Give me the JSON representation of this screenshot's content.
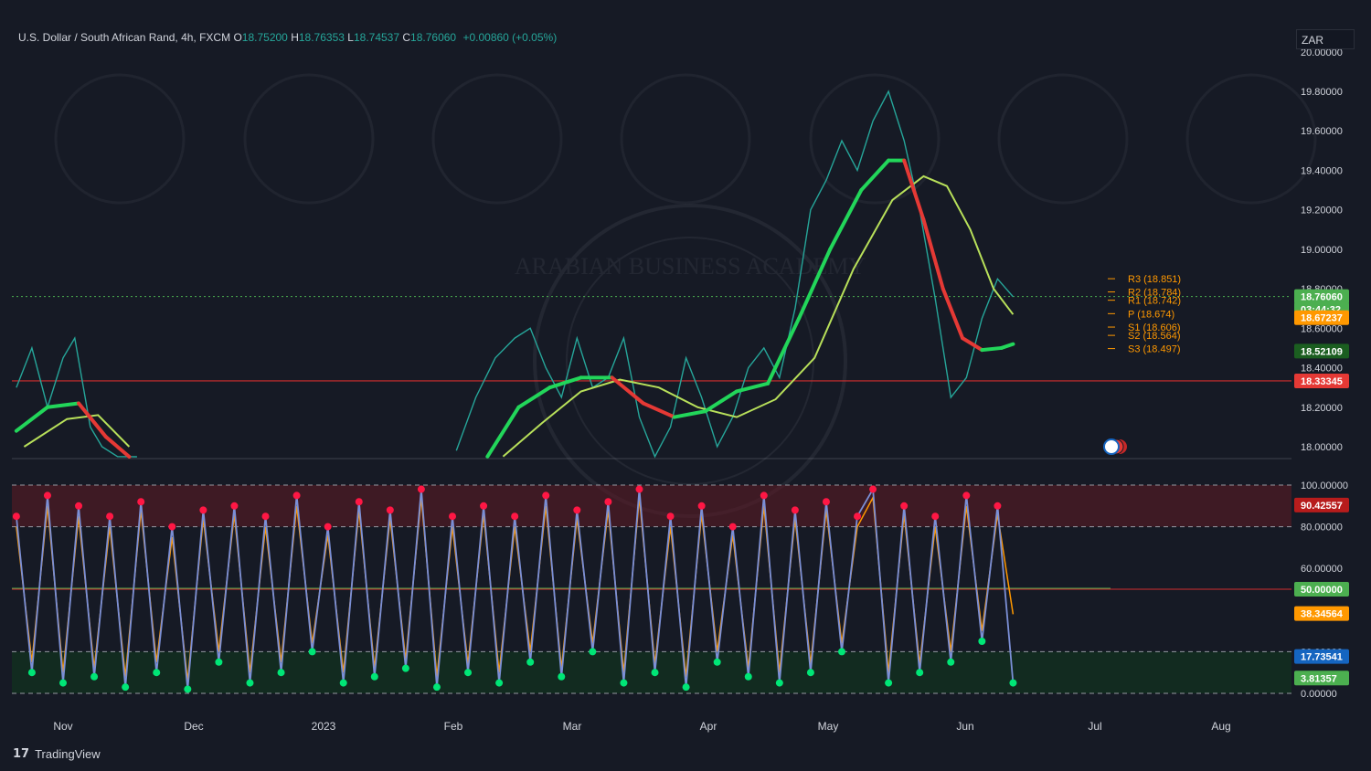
{
  "header": {
    "symbol": "U.S. Dollar / South African Rand, 4h, FXCM",
    "open_label": "O",
    "open": "18.75200",
    "high_label": "H",
    "high": "18.76353",
    "low_label": "L",
    "low": "18.74537",
    "close_label": "C",
    "close": "18.76060",
    "change": "+0.00860 (+0.05%)"
  },
  "currency": "ZAR",
  "footer": {
    "brand": "TradingView"
  },
  "watermark_text": "ARABIAN BUSINESS ACADEMY",
  "colors": {
    "background": "#161a25",
    "candle": "#26a69a",
    "ma_fast_up": "#22d65a",
    "ma_fast_down": "#e53935",
    "ma_slow": "#b8e05a",
    "resistance_line": "#d32f2f",
    "price_line_green": "#4caf50",
    "osc_line": "#7b8fd6",
    "osc_signal": "#ff9800",
    "overbought_zone": "#5a1a24",
    "oversold_zone": "#12301f"
  },
  "chart_data": [
    {
      "type": "line",
      "title": "U.S. Dollar / South African Rand, 4h, FXCM",
      "x_ticks": [
        "Nov",
        "Dec",
        "2023",
        "Feb",
        "Mar",
        "Apr",
        "May",
        "Jun",
        "Jul",
        "Aug"
      ],
      "y_ticks": [
        "18.00000",
        "18.20000",
        "18.40000",
        "18.60000",
        "18.80000",
        "19.00000",
        "19.20000",
        "19.40000",
        "19.60000",
        "19.80000",
        "20.00000"
      ],
      "ylim": [
        17.94,
        20.0
      ],
      "grid": false,
      "series": [
        {
          "x": [
            "Oct 20",
            "Oct 24",
            "Oct 28",
            "Nov 1",
            "Nov 4",
            "Nov 8",
            "Nov 11",
            "Nov 15",
            "Nov 20",
            "Feb 10",
            "Feb 15",
            "Feb 20",
            "Feb 25",
            "Mar 1",
            "Mar 5",
            "Mar 9",
            "Mar 13",
            "Mar 17",
            "Mar 21",
            "Mar 25",
            "Mar 29",
            "Apr 2",
            "Apr 6",
            "Apr 10",
            "Apr 14",
            "Apr 18",
            "Apr 22",
            "Apr 26",
            "Apr 30",
            "May 4",
            "May 8",
            "May 12",
            "May 16",
            "May 20",
            "May 24",
            "May 28",
            "Jun 1",
            "Jun 5",
            "Jun 9",
            "Jun 13",
            "Jun 17",
            "Jun 21",
            "Jun 25",
            "Jun 29",
            "Jul 3"
          ],
          "y": [
            18.3,
            18.5,
            18.2,
            18.45,
            18.55,
            18.1,
            18.0,
            17.95,
            17.9,
            17.98,
            18.25,
            18.45,
            18.55,
            18.6,
            18.4,
            18.25,
            18.55,
            18.3,
            18.35,
            18.55,
            18.15,
            17.95,
            18.1,
            18.45,
            18.25,
            18.0,
            18.15,
            18.4,
            18.5,
            18.35,
            18.7,
            19.2,
            19.35,
            19.55,
            19.4,
            19.65,
            19.8,
            19.55,
            19.2,
            18.75,
            18.25,
            18.35,
            18.65,
            18.85,
            18.76
          ]
        },
        {
          "name": "",
          "x": [
            "Oct 20",
            "Oct 28",
            "Nov 5",
            "Nov 12",
            "Nov 18",
            "Feb 18",
            "Feb 26",
            "Mar 6",
            "Mar 14",
            "Mar 22",
            "Mar 30",
            "Apr 7",
            "Apr 15",
            "Apr 23",
            "May 1",
            "May 9",
            "May 17",
            "May 25",
            "Jun 1",
            "Jun 5",
            "Jun 10",
            "Jun 15",
            "Jun 20",
            "Jun 25",
            "Jun 30",
            "Jul 3"
          ],
          "y": [
            18.08,
            18.2,
            18.22,
            18.05,
            17.85,
            17.95,
            18.2,
            18.3,
            18.35,
            18.35,
            18.22,
            18.15,
            18.18,
            18.28,
            18.32,
            18.65,
            19.0,
            19.3,
            19.45,
            19.45,
            19.15,
            18.8,
            18.55,
            18.49,
            18.5,
            18.52
          ]
        },
        {
          "name": "",
          "x": [
            "Oct 22",
            "Nov 2",
            "Nov 10",
            "Nov 18",
            "Feb 22",
            "Mar 4",
            "Mar 14",
            "Mar 24",
            "Apr 3",
            "Apr 13",
            "Apr 23",
            "May 3",
            "May 13",
            "May 23",
            "Jun 2",
            "Jun 10",
            "Jun 16",
            "Jun 22",
            "Jun 28",
            "Jul 3"
          ],
          "y": [
            18.0,
            18.14,
            18.16,
            18.0,
            17.95,
            18.12,
            18.28,
            18.34,
            18.3,
            18.2,
            18.15,
            18.24,
            18.45,
            18.9,
            19.25,
            19.37,
            19.32,
            19.1,
            18.8,
            18.67
          ]
        }
      ],
      "annotations": [
        "R3 (18.851)",
        "R2 (18.784)",
        "R1 (18.742)",
        "P (18.674)",
        "S1 (18.606)",
        "S2 (18.564)",
        "S3 (18.497)"
      ],
      "price_labels": [
        "18.76060",
        "03:44:32",
        "18.67237",
        "18.52109",
        "18.33345"
      ]
    },
    {
      "type": "line",
      "x_ticks": [
        "Nov",
        "Dec",
        "2023",
        "Feb",
        "Mar",
        "Apr",
        "May",
        "Jun",
        "Jul",
        "Aug"
      ],
      "y_ticks": [
        "0.00000",
        "20.00000",
        "40.00000",
        "60.00000",
        "80.00000",
        "100.00000"
      ],
      "ylim": [
        0,
        100
      ],
      "levels": [
        100,
        80,
        50,
        20,
        0
      ],
      "series": [
        {
          "name": "",
          "x": [
            "Oct 20",
            "Oct 24",
            "Oct 28",
            "Nov 1",
            "Nov 5",
            "Nov 9",
            "Nov 13",
            "Nov 17",
            "Nov 21",
            "Nov 25",
            "Nov 29",
            "Dec 3",
            "Dec 7",
            "Dec 11",
            "Dec 15",
            "Dec 19",
            "Dec 23",
            "Dec 27",
            "Dec 31",
            "Jan 4",
            "Jan 8",
            "Jan 12",
            "Jan 16",
            "Jan 20",
            "Jan 24",
            "Jan 28",
            "Feb 1",
            "Feb 5",
            "Feb 9",
            "Feb 13",
            "Feb 17",
            "Feb 21",
            "Feb 25",
            "Mar 1",
            "Mar 5",
            "Mar 9",
            "Mar 13",
            "Mar 17",
            "Mar 21",
            "Mar 25",
            "Mar 29",
            "Apr 2",
            "Apr 6",
            "Apr 10",
            "Apr 14",
            "Apr 18",
            "Apr 22",
            "Apr 26",
            "Apr 30",
            "May 4",
            "May 8",
            "May 12",
            "May 16",
            "May 20",
            "May 24",
            "May 28",
            "Jun 1",
            "Jun 5",
            "Jun 9",
            "Jun 13",
            "Jun 17",
            "Jun 21",
            "Jun 25",
            "Jun 29",
            "Jul 3"
          ],
          "y": [
            85,
            10,
            95,
            5,
            90,
            8,
            85,
            3,
            92,
            10,
            80,
            2,
            88,
            15,
            90,
            5,
            85,
            10,
            95,
            20,
            80,
            5,
            92,
            8,
            88,
            12,
            98,
            3,
            85,
            10,
            90,
            5,
            85,
            15,
            95,
            8,
            88,
            20,
            92,
            5,
            98,
            10,
            85,
            3,
            90,
            15,
            80,
            8,
            95,
            5,
            88,
            10,
            92,
            20,
            85,
            98,
            5,
            90,
            10,
            85,
            15,
            95,
            25,
            90,
            5
          ]
        },
        {
          "name": "",
          "x": [
            "Oct 20",
            "Oct 24",
            "Oct 28",
            "Nov 1",
            "Nov 5",
            "Nov 9",
            "Nov 13",
            "Nov 17",
            "Nov 21",
            "Nov 25",
            "Nov 29",
            "Dec 3",
            "Dec 7",
            "Dec 11",
            "Dec 15",
            "Dec 19",
            "Dec 23",
            "Dec 27",
            "Dec 31",
            "Jan 4",
            "Jan 8",
            "Jan 12",
            "Jan 16",
            "Jan 20",
            "Jan 24",
            "Jan 28",
            "Feb 1",
            "Feb 5",
            "Feb 9",
            "Feb 13",
            "Feb 17",
            "Feb 21",
            "Feb 25",
            "Mar 1",
            "Mar 5",
            "Mar 9",
            "Mar 13",
            "Mar 17",
            "Mar 21",
            "Mar 25",
            "Mar 29",
            "Apr 2",
            "Apr 6",
            "Apr 10",
            "Apr 14",
            "Apr 18",
            "Apr 22",
            "Apr 26",
            "Apr 30",
            "May 4",
            "May 8",
            "May 12",
            "May 16",
            "May 20",
            "May 24",
            "May 28",
            "Jun 1",
            "Jun 5",
            "Jun 9",
            "Jun 13",
            "Jun 17",
            "Jun 21",
            "Jun 25",
            "Jun 29",
            "Jul 3"
          ],
          "y": [
            80,
            15,
            90,
            10,
            85,
            12,
            80,
            8,
            88,
            15,
            75,
            6,
            84,
            20,
            86,
            10,
            80,
            15,
            90,
            24,
            76,
            10,
            88,
            12,
            84,
            16,
            94,
            8,
            80,
            14,
            86,
            10,
            80,
            20,
            90,
            12,
            84,
            24,
            88,
            10,
            94,
            14,
            80,
            8,
            86,
            20,
            76,
            12,
            90,
            10,
            84,
            14,
            88,
            24,
            80,
            94,
            10,
            86,
            14,
            80,
            20,
            90,
            30,
            86,
            38
          ]
        }
      ],
      "value_labels": [
        "90.42557",
        "50.00000",
        "38.34564",
        "17.73541",
        "3.81357"
      ]
    }
  ]
}
